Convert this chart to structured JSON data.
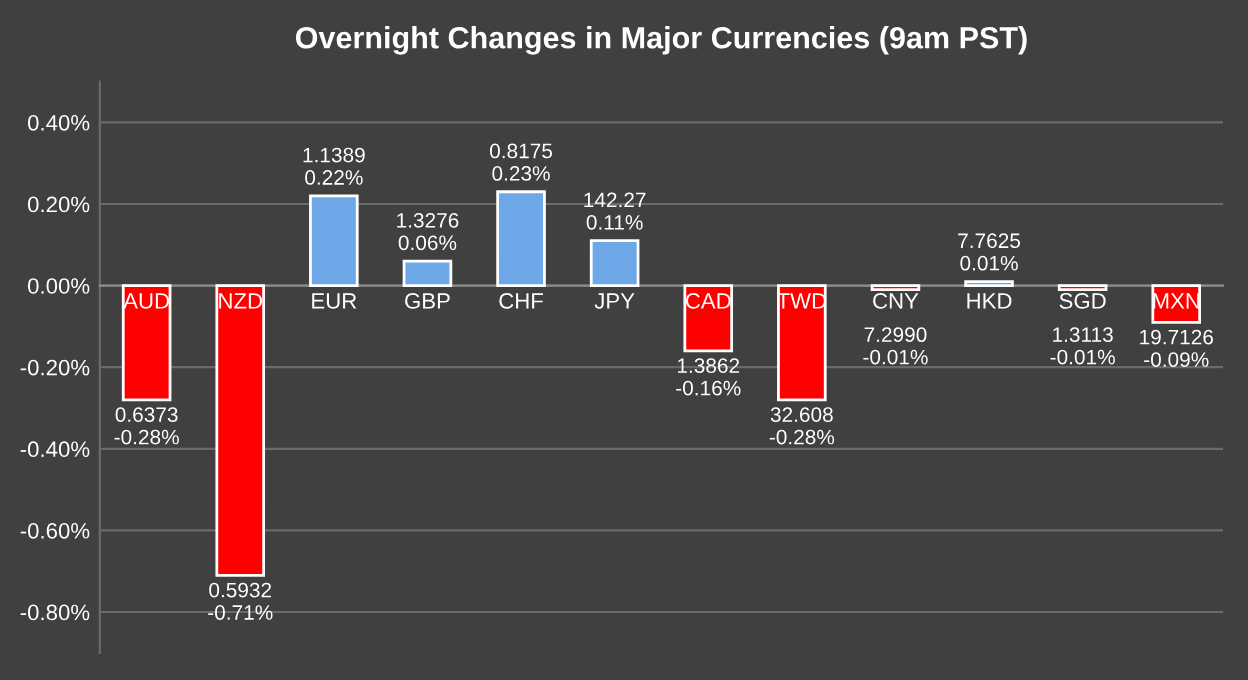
{
  "chart_data": {
    "type": "bar",
    "title": "Overnight Changes in Major Currencies (9am PST)",
    "categories": [
      "AUD",
      "NZD",
      "EUR",
      "GBP",
      "CHF",
      "JPY",
      "CAD",
      "TWD",
      "CNY",
      "HKD",
      "SGD",
      "MXN"
    ],
    "values": [
      -0.28,
      -0.71,
      0.22,
      0.06,
      0.23,
      0.11,
      -0.16,
      -0.28,
      -0.01,
      0.01,
      -0.01,
      -0.09
    ],
    "colors": [
      "#ff0000",
      "#ff0000",
      "#6fa8e8",
      "#6fa8e8",
      "#6fa8e8",
      "#6fa8e8",
      "#ff0000",
      "#ff0000",
      "#ff0000",
      "#6fa8e8",
      "#ff0000",
      "#ff0000"
    ],
    "value_labels": [
      "0.6373\n-0.28%",
      "0.5932\n-0.71%",
      "1.1389\n0.22%",
      "1.3276\n0.06%",
      "0.8175\n0.23%",
      "142.27\n0.11%",
      "1.3862\n-0.16%",
      "32.608\n-0.28%",
      "7.2990\n-0.01%",
      "7.7625\n0.01%",
      "1.3113\n-0.01%",
      "19.7126\n-0.09%"
    ],
    "ylim": [
      -0.9,
      0.5
    ],
    "yticks": [
      {
        "value": -0.8,
        "label": "-0.80%"
      },
      {
        "value": -0.6,
        "label": "-0.60%"
      },
      {
        "value": -0.4,
        "label": "-0.40%"
      },
      {
        "value": -0.2,
        "label": "-0.20%"
      },
      {
        "value": 0,
        "label": "0.00%"
      },
      {
        "value": 0.2,
        "label": "0.20%"
      },
      {
        "value": 0.4,
        "label": "0.40%"
      }
    ],
    "grid": "y"
  }
}
